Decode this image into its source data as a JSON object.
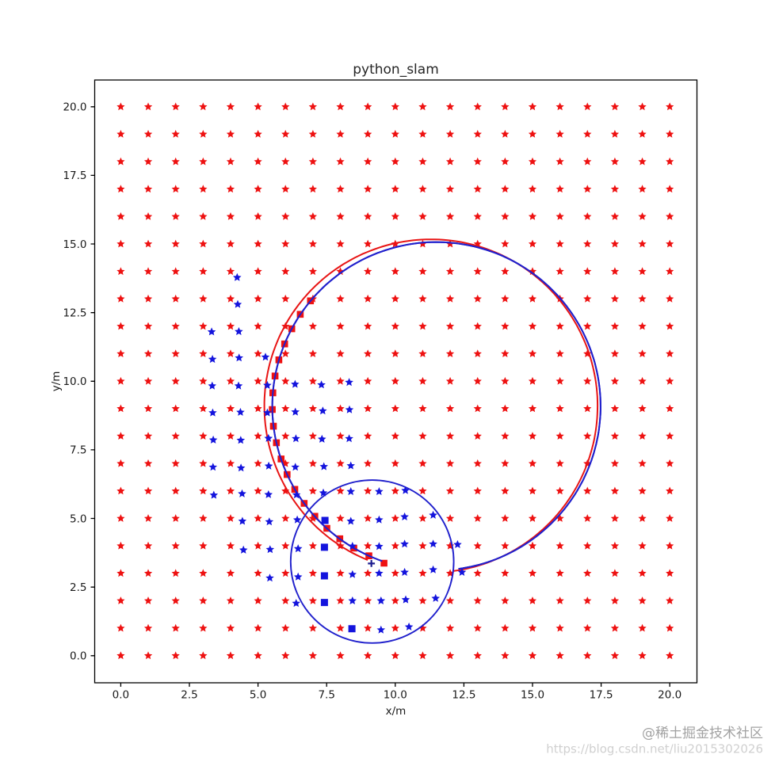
{
  "watermark": {
    "community": "@稀土掘金技术社区",
    "url": "https://blog.csdn.net/liu2015302026"
  },
  "chart_data": {
    "type": "scatter",
    "title": "python_slam",
    "xlabel": "x/m",
    "ylabel": "y/m",
    "xlim": [
      -0.95,
      21.0
    ],
    "ylim": [
      -1.0,
      21.0
    ],
    "grid": false,
    "legend": "none",
    "xticks": [
      0.0,
      2.5,
      5.0,
      7.5,
      10.0,
      12.5,
      15.0,
      17.5,
      20.0
    ],
    "xtick_labels": [
      "0.0",
      "2.5",
      "5.0",
      "7.5",
      "10.0",
      "12.5",
      "15.0",
      "17.5",
      "20.0"
    ],
    "yticks": [
      0.0,
      2.5,
      5.0,
      7.5,
      10.0,
      12.5,
      15.0,
      17.5,
      20.0
    ],
    "ytick_labels": [
      "0.0",
      "2.5",
      "5.0",
      "7.5",
      "10.0",
      "12.5",
      "15.0",
      "17.5",
      "20.0"
    ],
    "series": [
      {
        "name": "true_landmarks",
        "marker": "star",
        "color": "#ee1111",
        "layout": "grid",
        "x_range": [
          0,
          20,
          1
        ],
        "y_range": [
          0,
          20,
          1
        ]
      },
      {
        "name": "estimated_landmarks",
        "marker": "star",
        "color": "#1414dd",
        "points": [
          [
            4.24,
            13.78
          ],
          [
            4.26,
            12.8
          ],
          [
            3.31,
            11.8
          ],
          [
            4.3,
            11.81
          ],
          [
            3.34,
            10.8
          ],
          [
            4.31,
            10.85
          ],
          [
            5.27,
            10.88
          ],
          [
            3.33,
            9.83
          ],
          [
            4.29,
            9.83
          ],
          [
            5.34,
            9.85
          ],
          [
            6.35,
            9.89
          ],
          [
            7.31,
            9.87
          ],
          [
            8.32,
            9.96
          ],
          [
            3.35,
            8.85
          ],
          [
            4.36,
            8.87
          ],
          [
            5.34,
            8.85
          ],
          [
            6.36,
            8.88
          ],
          [
            7.36,
            8.92
          ],
          [
            8.33,
            8.96
          ],
          [
            3.37,
            7.86
          ],
          [
            4.37,
            7.85
          ],
          [
            5.38,
            7.92
          ],
          [
            6.38,
            7.91
          ],
          [
            7.33,
            7.89
          ],
          [
            8.32,
            7.91
          ],
          [
            3.36,
            6.87
          ],
          [
            4.38,
            6.84
          ],
          [
            5.39,
            6.91
          ],
          [
            6.36,
            6.87
          ],
          [
            7.4,
            6.89
          ],
          [
            8.38,
            6.92
          ],
          [
            3.39,
            5.85
          ],
          [
            4.42,
            5.9
          ],
          [
            5.38,
            5.87
          ],
          [
            6.4,
            5.86
          ],
          [
            7.38,
            5.93
          ],
          [
            8.38,
            5.98
          ],
          [
            9.41,
            5.98
          ],
          [
            10.37,
            6.02
          ],
          [
            4.43,
            4.9
          ],
          [
            5.41,
            4.88
          ],
          [
            6.43,
            4.95
          ],
          [
            8.38,
            4.9
          ],
          [
            9.41,
            4.95
          ],
          [
            10.34,
            5.06
          ],
          [
            11.38,
            5.12
          ],
          [
            4.47,
            3.85
          ],
          [
            5.44,
            3.87
          ],
          [
            6.46,
            3.9
          ],
          [
            8.44,
            3.99
          ],
          [
            9.41,
            3.98
          ],
          [
            10.34,
            4.07
          ],
          [
            11.38,
            4.07
          ],
          [
            12.27,
            4.05
          ],
          [
            5.43,
            2.83
          ],
          [
            6.46,
            2.87
          ],
          [
            8.44,
            2.96
          ],
          [
            9.41,
            3.0
          ],
          [
            10.34,
            3.04
          ],
          [
            11.38,
            3.13
          ],
          [
            12.43,
            3.04
          ],
          [
            6.39,
            1.91
          ],
          [
            8.44,
            2.0
          ],
          [
            9.48,
            2.0
          ],
          [
            10.38,
            2.04
          ],
          [
            11.47,
            2.09
          ],
          [
            9.48,
            0.94
          ],
          [
            10.5,
            1.05
          ]
        ]
      },
      {
        "name": "pose_history",
        "marker": "square",
        "color": "#ee1111",
        "points": [
          [
            6.91,
            12.93
          ],
          [
            6.54,
            12.44
          ],
          [
            6.23,
            11.91
          ],
          [
            5.97,
            11.36
          ],
          [
            5.76,
            10.78
          ],
          [
            5.62,
            10.19
          ],
          [
            5.54,
            9.58
          ],
          [
            5.52,
            8.97
          ],
          [
            5.56,
            8.36
          ],
          [
            5.67,
            7.76
          ],
          [
            5.84,
            7.17
          ],
          [
            6.06,
            6.6
          ],
          [
            6.34,
            6.06
          ],
          [
            6.68,
            5.55
          ],
          [
            7.07,
            5.08
          ],
          [
            7.51,
            4.64
          ],
          [
            7.98,
            4.26
          ],
          [
            8.49,
            3.92
          ],
          [
            9.04,
            3.64
          ],
          [
            9.59,
            3.37
          ]
        ]
      },
      {
        "name": "new_landmarks",
        "marker": "square",
        "color": "#1414dd",
        "points": [
          [
            7.44,
            4.93
          ],
          [
            7.42,
            3.95
          ],
          [
            7.42,
            2.91
          ],
          [
            7.42,
            1.94
          ],
          [
            8.42,
            0.98
          ]
        ]
      },
      {
        "name": "current_pose",
        "marker": "plus",
        "color": "#1d1d8f",
        "points": [
          [
            9.13,
            3.36
          ]
        ]
      }
    ],
    "paths": [
      {
        "name": "true_trajectory",
        "shape": "arc",
        "color": "#e81414",
        "cx": 11.3,
        "cy": 9.1,
        "r": 6.07,
        "start_deg": 277.7,
        "end_deg": 248.2
      },
      {
        "name": "estimated_trajectory",
        "shape": "arc",
        "color": "#2020cc",
        "cx": 11.5,
        "cy": 9.09,
        "r": 5.98,
        "start_deg": 277.7,
        "end_deg": 251.5
      },
      {
        "name": "sensor_range",
        "shape": "circle",
        "color": "#2020cc",
        "cx": 9.16,
        "cy": 3.43,
        "r": 2.97
      }
    ],
    "colors": {
      "true_color": "#ee1111",
      "estimate_color": "#1414dd",
      "axis_color": "#000000",
      "title_color": "#262626",
      "watermark_primary": "#a2a2a2",
      "watermark_secondary": "#d0d0d0"
    }
  }
}
